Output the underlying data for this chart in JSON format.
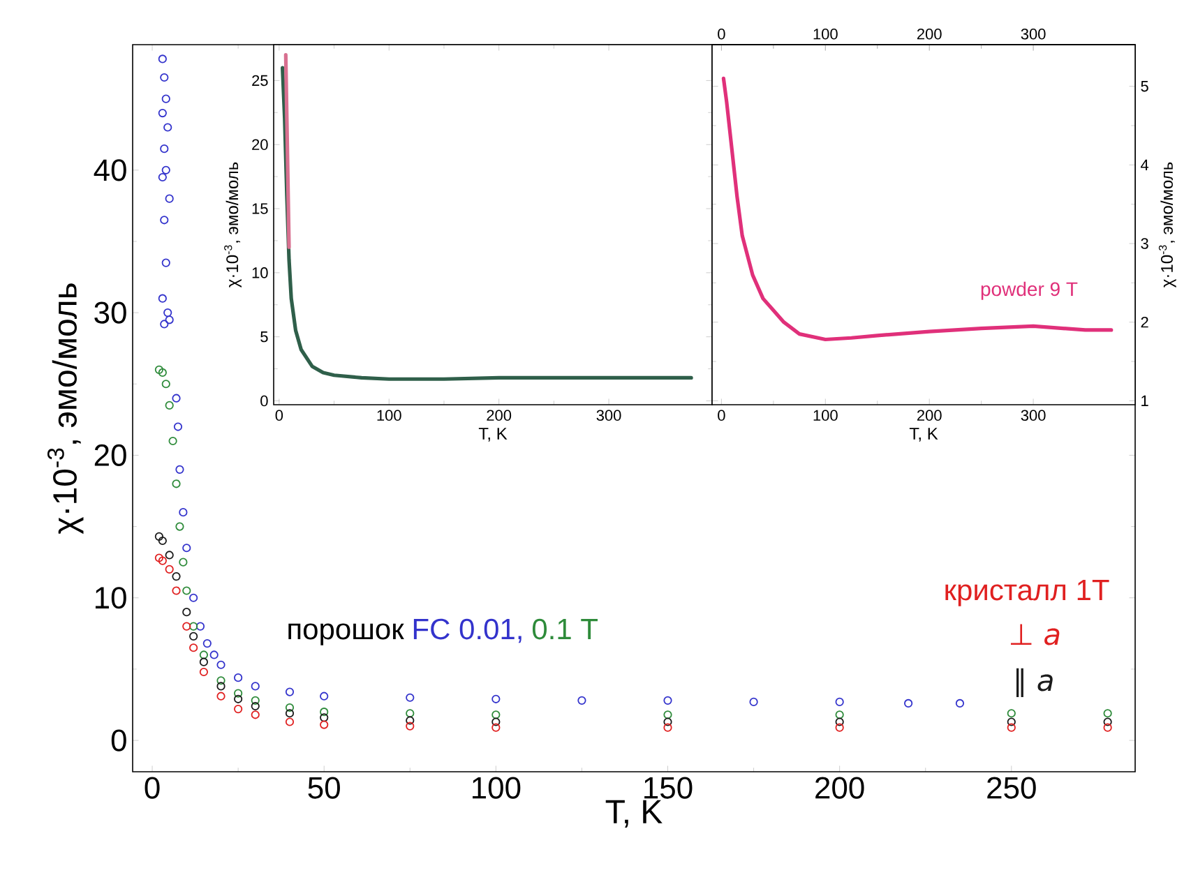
{
  "chart_data": [
    {
      "type": "scatter",
      "xlabel": "T, K",
      "ylabel": "χ·10$^{-3}$, эмо/моль",
      "xlim": [
        -5.7,
        286
      ],
      "ylim": [
        -2.2,
        48.8
      ],
      "xticks": [
        0,
        50,
        100,
        150,
        200,
        250
      ],
      "yticks": [
        0,
        10,
        20,
        30,
        40
      ],
      "marker": "circle",
      "annotations": [
        "порошок",
        "кристалл 1T"
      ],
      "series": [
        {
          "name": "FC 0.01,",
          "color": "#3333cc",
          "x": [
            3,
            3.5,
            4,
            3,
            4.5,
            3.5,
            4,
            3,
            5,
            3.5,
            4,
            3,
            4.5,
            3.5,
            5,
            7,
            7.5,
            8,
            9,
            10,
            12,
            14,
            16,
            18,
            20,
            25,
            30,
            40,
            50,
            75,
            100,
            125,
            150,
            175,
            200,
            220,
            235
          ],
          "values": [
            47.8,
            46.5,
            45,
            44,
            43,
            41.5,
            40,
            39.5,
            38,
            36.5,
            33.5,
            31,
            30,
            29.2,
            29.5,
            24,
            22,
            19,
            16,
            13.5,
            10,
            8,
            6.8,
            6,
            5.3,
            4.4,
            3.8,
            3.4,
            3.1,
            3,
            2.9,
            2.8,
            2.8,
            2.7,
            2.7,
            2.6,
            2.6
          ]
        },
        {
          "name": "0.1 T",
          "color": "#2e8b3a",
          "x": [
            2,
            3,
            4,
            5,
            6,
            7,
            8,
            9,
            10,
            12,
            15,
            20,
            25,
            30,
            40,
            50,
            75,
            100,
            150,
            200,
            250,
            278
          ],
          "values": [
            26,
            25.8,
            25,
            23.5,
            21,
            18,
            15,
            12.5,
            10.5,
            8,
            6,
            4.2,
            3.3,
            2.8,
            2.3,
            2,
            1.9,
            1.8,
            1.8,
            1.8,
            1.9,
            1.9
          ]
        },
        {
          "name": "∥ *a*",
          "color": "#1a1a1a",
          "x": [
            2,
            3,
            5,
            7,
            10,
            12,
            15,
            20,
            25,
            30,
            40,
            50,
            75,
            100,
            150,
            200,
            250,
            278
          ],
          "values": [
            14.3,
            14,
            13,
            11.5,
            9,
            7.3,
            5.5,
            3.8,
            2.9,
            2.4,
            1.9,
            1.6,
            1.4,
            1.3,
            1.3,
            1.3,
            1.3,
            1.3
          ]
        },
        {
          "name": "⊥ *a*",
          "color": "#e02020",
          "x": [
            2,
            3,
            5,
            7,
            10,
            12,
            15,
            20,
            25,
            30,
            40,
            50,
            75,
            100,
            150,
            200,
            250,
            278
          ],
          "values": [
            12.8,
            12.6,
            12,
            10.5,
            8,
            6.5,
            4.8,
            3.1,
            2.2,
            1.8,
            1.3,
            1.1,
            1,
            0.9,
            0.9,
            0.9,
            0.9,
            0.9
          ]
        }
      ]
    },
    {
      "type": "line",
      "xlabel": "T, K",
      "ylabel": "χ·10$^{-3}$, эмо/моль",
      "xlim": [
        -5,
        394
      ],
      "ylim": [
        -0.3,
        27.8
      ],
      "xticks": [
        0,
        100,
        200,
        300
      ],
      "yticks": [
        0,
        5,
        10,
        15,
        20,
        25
      ],
      "series": [
        {
          "color": "#2f5f4a",
          "x": [
            3,
            5,
            7,
            9,
            11,
            15,
            20,
            30,
            40,
            50,
            75,
            100,
            150,
            200,
            250,
            300,
            350,
            375
          ],
          "values": [
            26,
            22,
            16,
            11,
            8,
            5.5,
            4,
            2.7,
            2.2,
            2,
            1.8,
            1.7,
            1.7,
            1.8,
            1.8,
            1.8,
            1.8,
            1.8
          ]
        },
        {
          "color": "#d87090",
          "x": [
            6,
            7,
            8,
            9
          ],
          "values": [
            27,
            22,
            17,
            12
          ]
        }
      ]
    },
    {
      "type": "line",
      "xlabel": "T, K",
      "y2label": "χ·10$^{-3}$, эмо/моль",
      "xlim": [
        -9,
        398
      ],
      "xticks": [
        0,
        100,
        200,
        300
      ],
      "x2lim": [
        -9,
        398
      ],
      "x2ticks": [
        0,
        100,
        200,
        300
      ],
      "y2lim": [
        0.95,
        5.53
      ],
      "y2ticks": [
        1,
        2,
        3,
        4,
        5
      ],
      "series": [
        {
          "name": "powder 9 T",
          "axis": "y2",
          "color": "#e0307a",
          "x": [
            2,
            5,
            10,
            15,
            20,
            30,
            40,
            50,
            60,
            75,
            100,
            125,
            150,
            200,
            250,
            300,
            350,
            375
          ],
          "values": [
            5.1,
            4.8,
            4.2,
            3.6,
            3.1,
            2.6,
            2.3,
            2.15,
            2.0,
            1.85,
            1.78,
            1.8,
            1.83,
            1.88,
            1.92,
            1.95,
            1.9,
            1.9
          ]
        }
      ]
    }
  ]
}
